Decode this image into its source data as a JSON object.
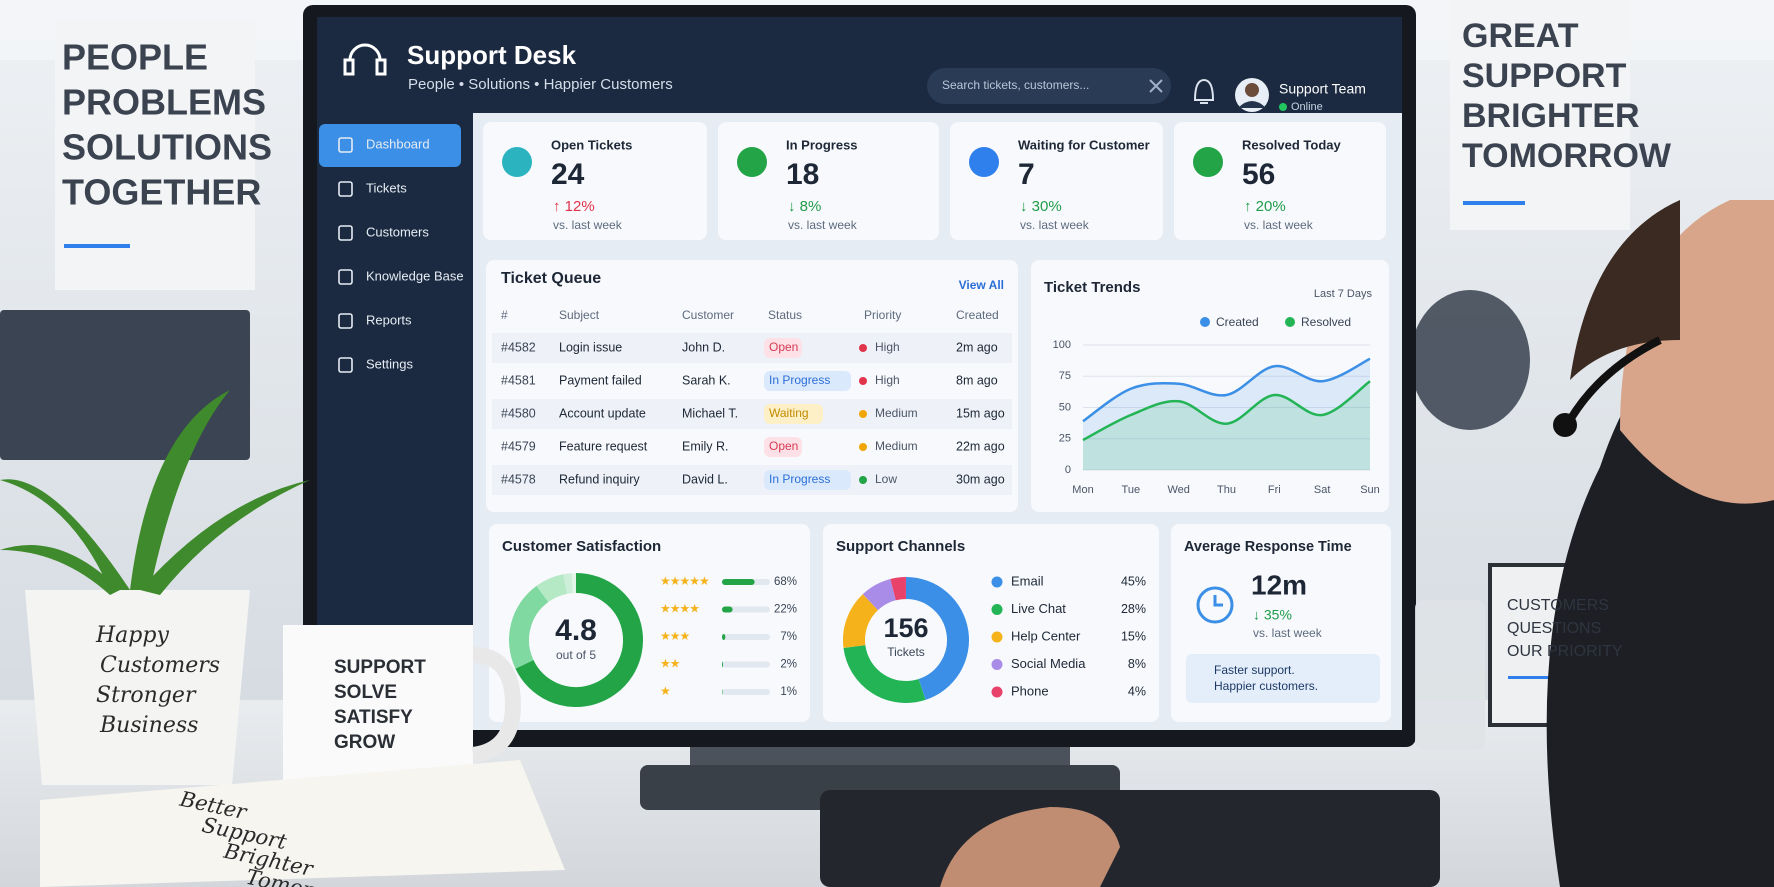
{
  "scene": {
    "left_poster": [
      "PEOPLE",
      "PROBLEMS",
      "SOLUTIONS",
      "TOGETHER"
    ],
    "right_poster": [
      "GREAT",
      "SUPPORT",
      "BRIGHTER",
      "TOMORROW"
    ],
    "pot": [
      "Happy",
      "Customers",
      "Stronger",
      "Business"
    ],
    "mug": [
      "SUPPORT",
      "SOLVE",
      "SATISFY",
      "GROW"
    ],
    "notebook": [
      "Better",
      "Support",
      "Brighter",
      "Tomorrow"
    ],
    "desk_sign": [
      "CUSTOMERS",
      "QUESTIONS",
      "OUR PRIORITY"
    ]
  },
  "header": {
    "title": "Support Desk",
    "subtitle": "People  •  Solutions  •  Happier Customers",
    "search_placeholder": "Search tickets, customers...",
    "user": "Support Team",
    "status": "Online"
  },
  "sidebar": [
    "Dashboard",
    "Tickets",
    "Customers",
    "Knowledge Base",
    "Reports",
    "Settings"
  ],
  "kpis": [
    {
      "label": "Open Tickets",
      "value": 24,
      "change": "↑ 12%",
      "note": "vs. last week",
      "color": "#e0344b",
      "icon_color": "#2bb3c0"
    },
    {
      "label": "In Progress",
      "value": 18,
      "change": "↓ 8%",
      "note": "vs. last week",
      "color": "#1f9d4a",
      "icon_color": "#22a447"
    },
    {
      "label": "Waiting for Customer",
      "value": 7,
      "change": "↓ 30%",
      "note": "vs. last week",
      "color": "#1f9d4a",
      "icon_color": "#2f80ed"
    },
    {
      "label": "Resolved Today",
      "value": 56,
      "change": "↑ 20%",
      "note": "vs. last week",
      "color": "#1f9d4a",
      "icon_color": "#22a447"
    }
  ],
  "ticket_queue": {
    "title": "Ticket Queue",
    "link": "View All",
    "columns": [
      "#",
      "Subject",
      "Customer",
      "Status",
      "Priority",
      "Created"
    ],
    "rows": [
      [
        "#4582",
        "Login issue",
        "John D.",
        "Open",
        "High",
        "2m ago"
      ],
      [
        "#4581",
        "Payment failed",
        "Sarah K.",
        "In Progress",
        "High",
        "8m ago"
      ],
      [
        "#4580",
        "Account update",
        "Michael T.",
        "Waiting",
        "Medium",
        "15m ago"
      ],
      [
        "#4579",
        "Feature request",
        "Emily R.",
        "Open",
        "Medium",
        "22m ago"
      ],
      [
        "#4578",
        "Refund inquiry",
        "David L.",
        "In Progress",
        "Low",
        "30m ago"
      ]
    ],
    "status_colors": {
      "Open": [
        "#fde1e6",
        "#d63a55"
      ],
      "In Progress": [
        "#dbe9fd",
        "#2b6fd6"
      ],
      "Waiting": [
        "#fdf0c6",
        "#c28a00"
      ]
    },
    "priority_colors": {
      "High": "#e0344b",
      "Medium": "#f0a500",
      "Low": "#22a447"
    }
  },
  "ticket_trends": {
    "type": "line",
    "title": "Ticket Trends",
    "period": "Last 7 Days",
    "categories": [
      "Mon",
      "Tue",
      "Wed",
      "Thu",
      "Fri",
      "Sat",
      "Sun"
    ],
    "series": [
      {
        "name": "Created",
        "color": "#3b8fe6",
        "values": [
          39,
          65,
          69,
          60,
          83,
          71,
          89
        ]
      },
      {
        "name": "Resolved",
        "color": "#22b455",
        "values": [
          24,
          44,
          55,
          37,
          60,
          44,
          71
        ]
      }
    ],
    "ylim": [
      0,
      100
    ],
    "yticks": [
      0,
      25,
      50,
      75,
      100
    ],
    "grid": true
  },
  "satisfaction": {
    "title": "Customer Satisfaction",
    "score": 4.8,
    "score_note": "out of 5",
    "stars": [
      "★★★★★",
      "★★★★",
      "★★★",
      "★★",
      "★"
    ],
    "values": [
      68,
      22,
      7,
      2,
      1
    ],
    "value_labels": [
      "68%",
      "22%",
      "7%",
      "2%",
      "1%"
    ],
    "colors": [
      "#22a447",
      "#7fd9a0",
      "#b5e8c5",
      "#cdeed8",
      "#e3f5e9"
    ]
  },
  "channels": {
    "title": "Support Channels",
    "total": 156,
    "total_note": "Tickets",
    "categories": [
      "Email",
      "Live Chat",
      "Help Center",
      "Social Media",
      "Phone"
    ],
    "values": [
      45,
      28,
      15,
      8,
      4
    ],
    "value_labels": [
      "45%",
      "28%",
      "15%",
      "8%",
      "4%"
    ],
    "colors": [
      "#3b8fe6",
      "#22b455",
      "#f5b21b",
      "#a98be8",
      "#e8416a"
    ]
  },
  "response": {
    "title": "Average Response Time",
    "value": "12m",
    "change": "↓ 35%",
    "note": "vs. last week",
    "tip": [
      "Faster support.",
      "Happier customers."
    ]
  }
}
